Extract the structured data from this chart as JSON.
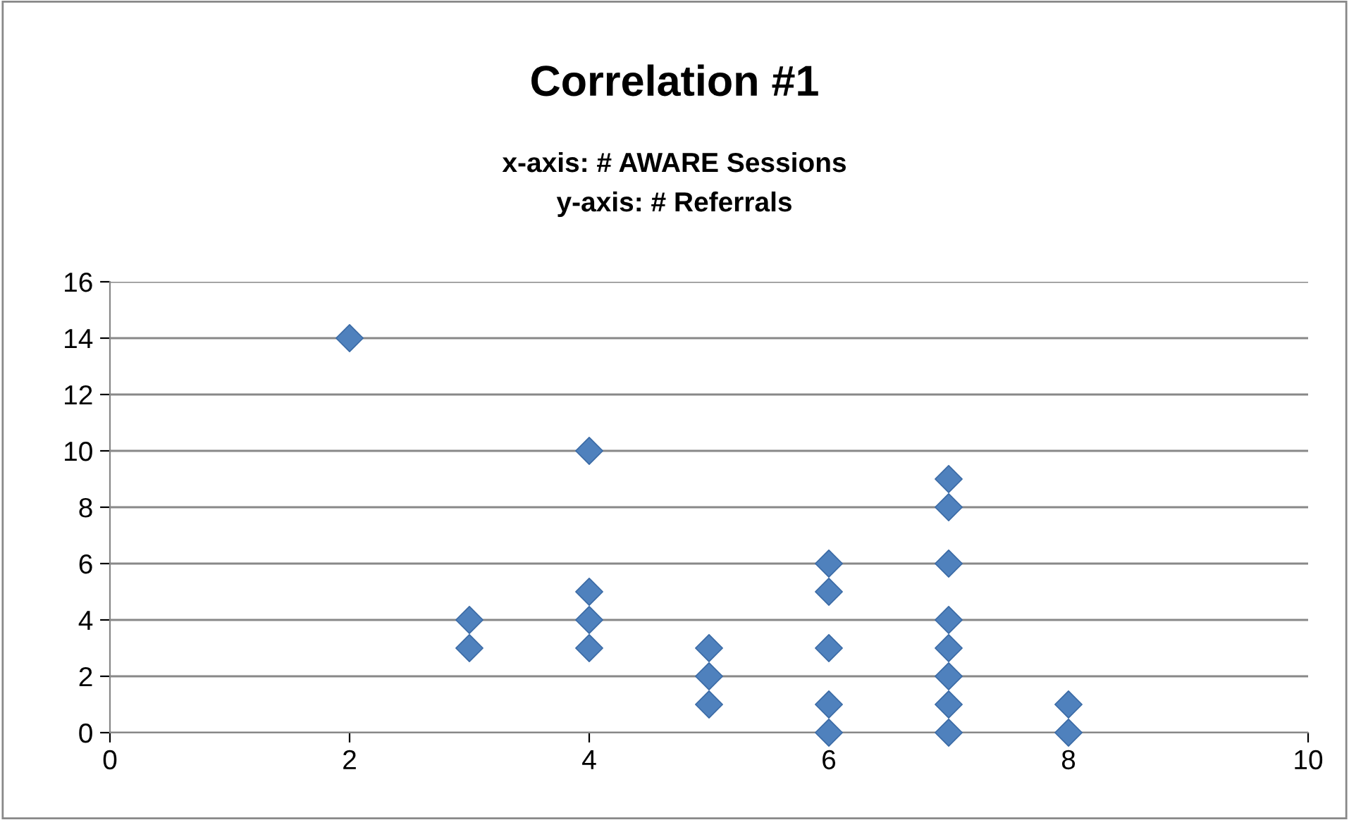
{
  "chart_data": {
    "type": "scatter",
    "title": "Correlation #1",
    "subtitle": "x-axis: # AWARE Sessions\ny-axis: # Referrals",
    "series": [
      {
        "color": "#4f81bd",
        "x": [
          2,
          3,
          3,
          4,
          4,
          4,
          4,
          5,
          5,
          5,
          6,
          6,
          6,
          6,
          6,
          7,
          7,
          7,
          7,
          7,
          7,
          7,
          7,
          8,
          8
        ],
        "values": [
          14,
          4,
          3,
          10,
          5,
          4,
          3,
          3,
          2,
          1,
          6,
          5,
          3,
          1,
          0,
          9,
          8,
          6,
          4,
          3,
          2,
          1,
          0,
          1,
          0
        ]
      }
    ],
    "xlim": [
      0,
      10
    ],
    "xticks": [
      0,
      2,
      4,
      6,
      8,
      10
    ],
    "ylim": [
      0,
      16
    ],
    "yticks": [
      0,
      2,
      4,
      6,
      8,
      10,
      12,
      14,
      16
    ],
    "grid": "y",
    "marker": "diamond"
  }
}
